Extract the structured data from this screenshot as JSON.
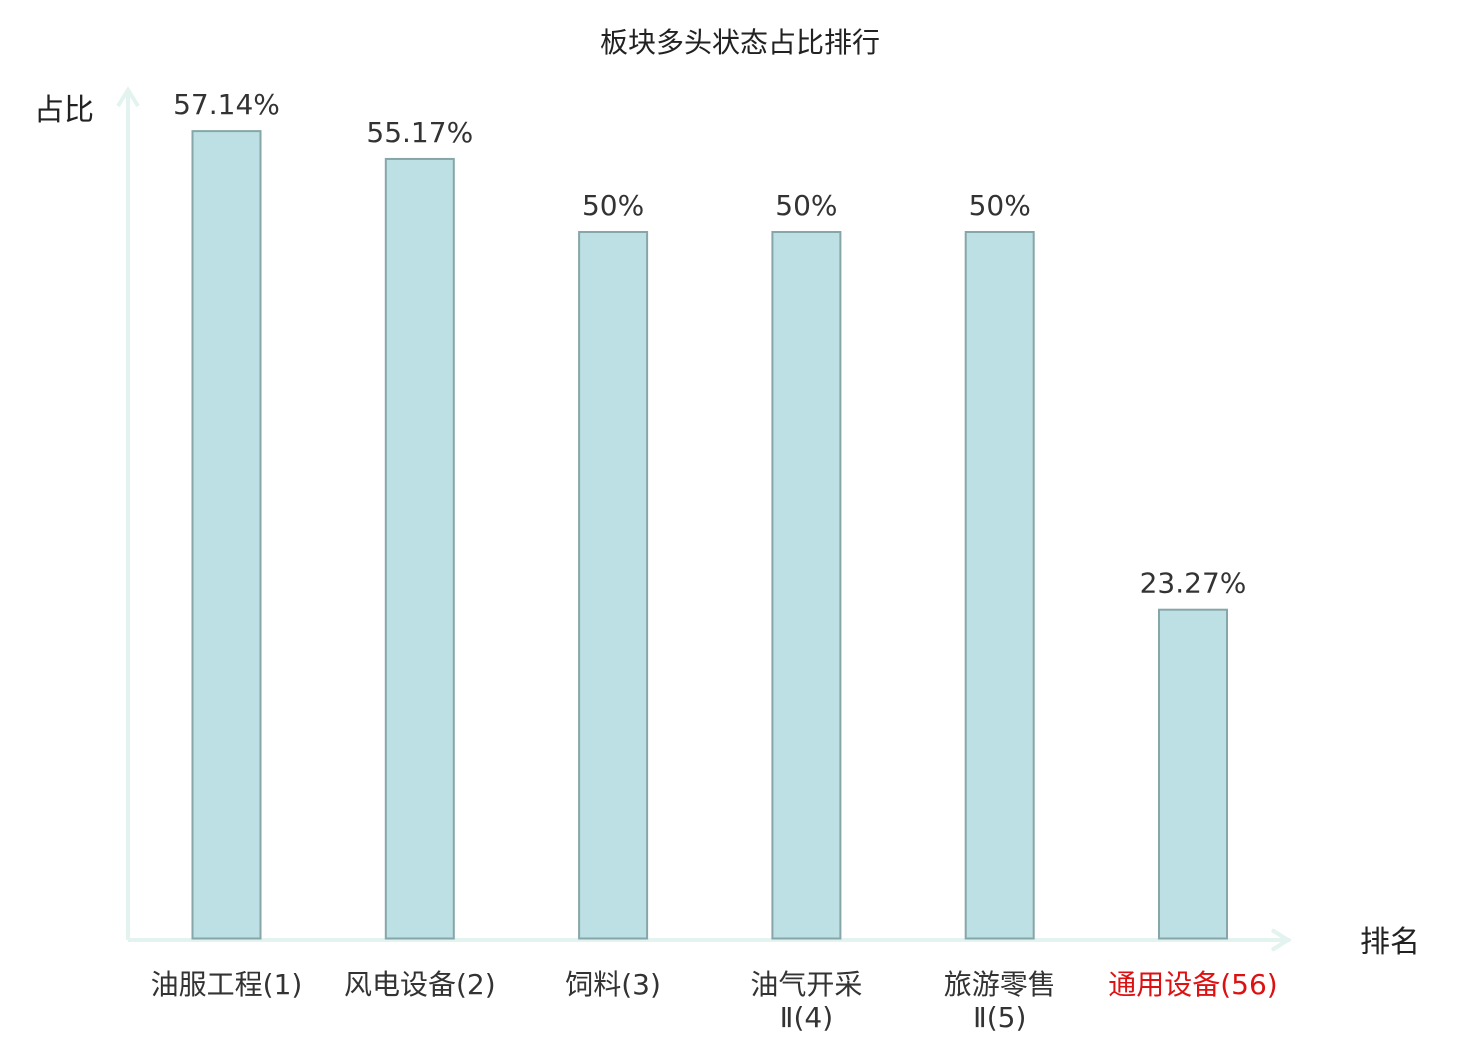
{
  "chart_data": {
    "type": "bar",
    "title": "板块多头状态占比排行",
    "xlabel": "排名",
    "ylabel": "占比",
    "categories": [
      [
        "油服工程(1)"
      ],
      [
        "风电设备(2)"
      ],
      [
        "饲料(3)"
      ],
      [
        "油气开采",
        "Ⅱ(4)"
      ],
      [
        "旅游零售",
        "Ⅱ(5)"
      ],
      [
        "通用设备(56)"
      ]
    ],
    "values": [
      57.14,
      55.17,
      50,
      50,
      50,
      23.27
    ],
    "value_labels": [
      "57.14%",
      "55.17%",
      "50%",
      "50%",
      "50%",
      "23.27%"
    ],
    "highlight_index": 5,
    "ylim": [
      0,
      62
    ],
    "grid": false,
    "legend": "none",
    "colors": {
      "bar_fill": "#bce0e3",
      "bar_stroke": "#86a6a9",
      "axis": "#e2f3f0",
      "highlight_label": "#dd1111",
      "text": "#333333"
    }
  }
}
